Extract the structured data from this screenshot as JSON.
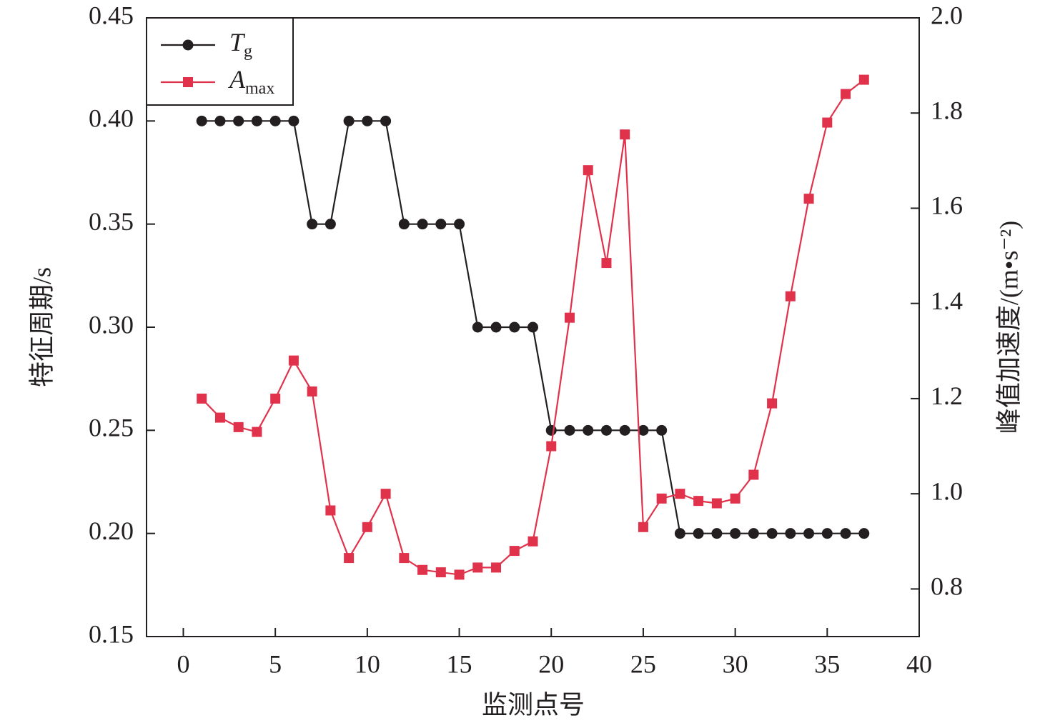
{
  "chart_data": {
    "type": "line",
    "x_label": "监测点号",
    "y_label": "特征周期/s",
    "y2_label": "峰值加速度/(m•s⁻²)",
    "x": [
      1,
      2,
      3,
      4,
      5,
      6,
      7,
      8,
      9,
      10,
      11,
      12,
      13,
      14,
      15,
      16,
      17,
      18,
      19,
      20,
      21,
      22,
      23,
      24,
      25,
      26,
      27,
      28,
      29,
      30,
      31,
      32,
      33,
      34,
      35,
      36,
      37
    ],
    "series": [
      {
        "name": "Tg",
        "color": "#231f20",
        "marker": "circle",
        "values": [
          0.4,
          0.4,
          0.4,
          0.4,
          0.4,
          0.4,
          0.35,
          0.35,
          0.4,
          0.4,
          0.4,
          0.35,
          0.35,
          0.35,
          0.35,
          0.3,
          0.3,
          0.3,
          0.3,
          0.25,
          0.25,
          0.25,
          0.25,
          0.25,
          0.25,
          0.25,
          0.2,
          0.2,
          0.2,
          0.2,
          0.2,
          0.2,
          0.2,
          0.2,
          0.2,
          0.2,
          0.2
        ]
      },
      {
        "name": "Amax",
        "color": "#e0324b",
        "marker": "square",
        "axis": "y2",
        "values": [
          1.2,
          1.16,
          1.14,
          1.13,
          1.2,
          1.28,
          1.215,
          0.965,
          0.865,
          0.93,
          1.0,
          0.865,
          0.84,
          0.835,
          0.83,
          0.845,
          0.845,
          0.88,
          0.9,
          1.1,
          1.37,
          1.68,
          1.485,
          1.755,
          0.93,
          0.99,
          1.0,
          0.985,
          0.98,
          0.99,
          1.04,
          1.19,
          1.415,
          1.62,
          1.78,
          1.84,
          1.87
        ]
      }
    ],
    "xlim": [
      -2,
      40
    ],
    "xticks": [
      0,
      5,
      10,
      15,
      20,
      25,
      30,
      35,
      40
    ],
    "ylim": [
      0.15,
      0.45
    ],
    "yticks": [
      0.15,
      {
        "value": 0.2,
        "label": "0.20"
      },
      0.25,
      {
        "value": 0.3,
        "label": "0.30"
      },
      0.35,
      {
        "value": 0.4,
        "label": "0.40"
      },
      0.45
    ],
    "y2lim": [
      0.7,
      2.0
    ],
    "y2ticks": [
      0.8,
      {
        "value": 1.0,
        "label": "1.0"
      },
      1.2,
      1.4,
      1.6,
      1.8,
      {
        "value": 2.0,
        "label": "2.0"
      }
    ],
    "legend": "upper left"
  }
}
